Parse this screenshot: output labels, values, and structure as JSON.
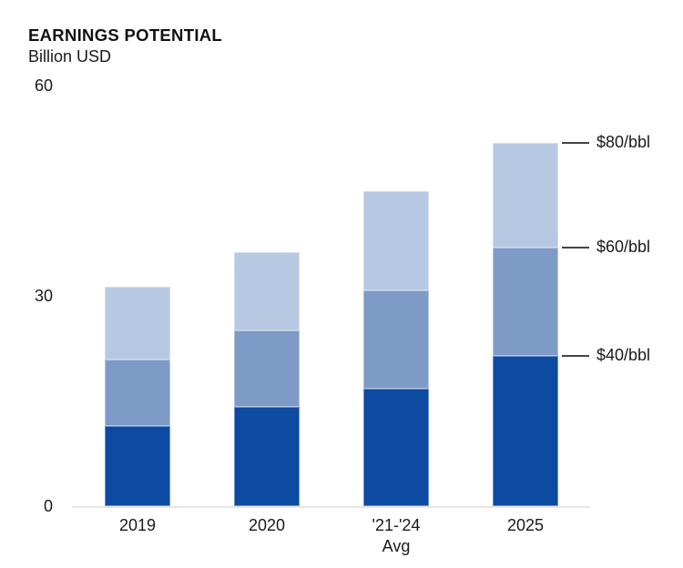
{
  "header": {
    "title": "EARNINGS POTENTIAL",
    "subtitle": "Billion USD"
  },
  "chart_data": {
    "type": "bar",
    "stacked": true,
    "title": "EARNINGS POTENTIAL",
    "ylabel": "Billion USD",
    "categories": [
      "2019",
      "2020",
      "'21-'24\nAvg",
      "2025"
    ],
    "series": [
      {
        "name": "$40/bbl",
        "color": "#0d4aa1",
        "values": [
          11.4,
          14.1,
          16.7,
          21.4
        ]
      },
      {
        "name": "$60/bbl",
        "color": "#7e9bc7",
        "values": [
          9.5,
          11.0,
          14.1,
          15.5
        ]
      },
      {
        "name": "$80/bbl",
        "color": "#b7c8e2",
        "values": [
          10.4,
          11.1,
          14.2,
          14.9
        ]
      }
    ],
    "ylim": [
      0,
      60
    ],
    "yticks": [
      0,
      30,
      60
    ],
    "grid": false,
    "legend_position": "annotations-right-of-last-bar",
    "annotations": [
      {
        "label": "$80/bbl",
        "series": "$80/bbl"
      },
      {
        "label": "$60/bbl",
        "series": "$60/bbl"
      },
      {
        "label": "$40/bbl",
        "series": "$40/bbl"
      }
    ],
    "colors": {
      "dark_blue": "#0d4aa1",
      "medium_blue": "#7e9bc7",
      "light_blue": "#b7c8e2",
      "axis_line": "#e6e6e6",
      "annotation_dash": "#444444",
      "text": "#1a1a1a"
    }
  }
}
